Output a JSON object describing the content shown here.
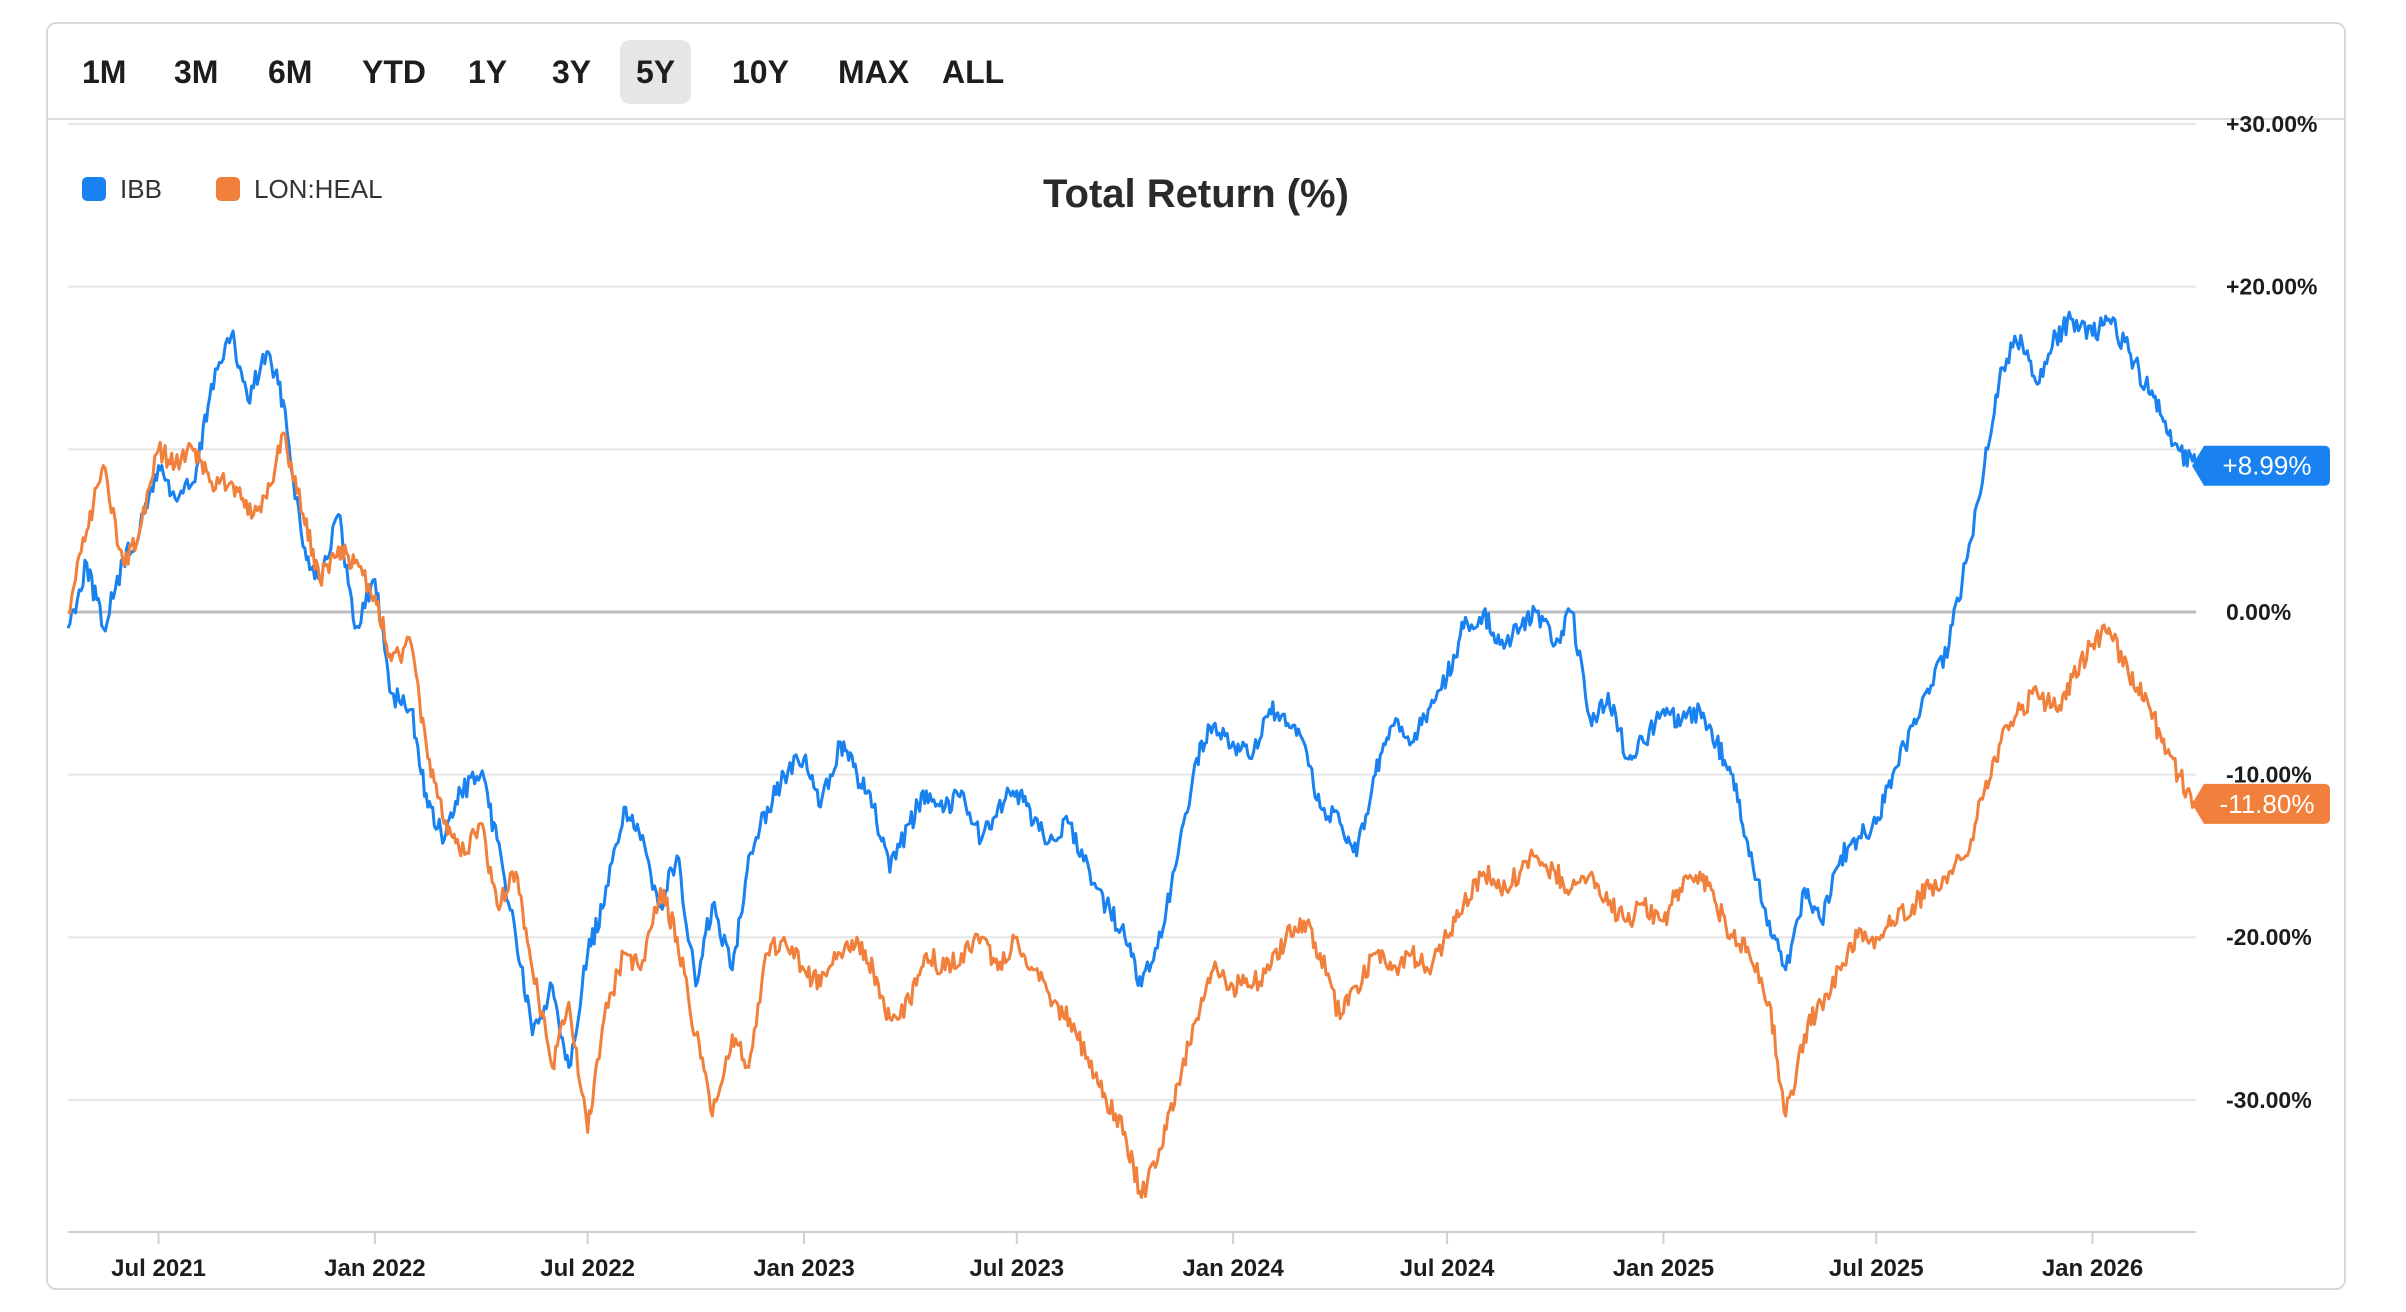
{
  "range_tabs": [
    {
      "label": "1M",
      "active": false
    },
    {
      "label": "3M",
      "active": false
    },
    {
      "label": "6M",
      "active": false
    },
    {
      "label": "YTD",
      "active": false
    },
    {
      "label": "1Y",
      "active": false
    },
    {
      "label": "3Y",
      "active": false
    },
    {
      "label": "5Y",
      "active": true
    },
    {
      "label": "10Y",
      "active": false
    },
    {
      "label": "MAX",
      "active": false
    },
    {
      "label": "ALL",
      "active": false
    }
  ],
  "chart_data": {
    "type": "line",
    "title": "Total Return (%)",
    "xlabel": "",
    "ylabel": "",
    "ylim": [
      -38,
      30
    ],
    "yticks": [
      30,
      20,
      10,
      0,
      -10,
      -20,
      -30
    ],
    "ytick_labels": [
      "+30.00%",
      "+20.00%",
      "",
      "0.00%",
      "-10.00%",
      "-20.00%",
      "-30.00%"
    ],
    "x_range": [
      "2021-04-15",
      "2026-03-30"
    ],
    "xticks": [
      {
        "date": "2021-07-01",
        "label": "Jul 2021"
      },
      {
        "date": "2022-01-01",
        "label": "Jan 2022"
      },
      {
        "date": "2022-07-01",
        "label": "Jul 2022"
      },
      {
        "date": "2023-01-01",
        "label": "Jan 2023"
      },
      {
        "date": "2023-07-01",
        "label": "Jul 2023"
      },
      {
        "date": "2024-01-01",
        "label": "Jan 2024"
      },
      {
        "date": "2024-07-01",
        "label": "Jul 2024"
      },
      {
        "date": "2025-01-01",
        "label": "Jan 2025"
      },
      {
        "date": "2025-07-01",
        "label": "Jul 2025"
      },
      {
        "date": "2026-01-01",
        "label": "Jan 2026"
      }
    ],
    "grid": true,
    "legend": "top-left",
    "series": [
      {
        "name": "IBB",
        "color": "#1a82f0",
        "last_label": "+8.99%",
        "points": [
          [
            "2021-04-15",
            -1
          ],
          [
            "2021-05-01",
            3
          ],
          [
            "2021-05-15",
            -1
          ],
          [
            "2021-06-01",
            3
          ],
          [
            "2021-06-15",
            5
          ],
          [
            "2021-07-01",
            9
          ],
          [
            "2021-07-15",
            7
          ],
          [
            "2021-08-01",
            8
          ],
          [
            "2021-08-15",
            14
          ],
          [
            "2021-09-01",
            17
          ],
          [
            "2021-09-15",
            13
          ],
          [
            "2021-10-01",
            16
          ],
          [
            "2021-10-15",
            13
          ],
          [
            "2021-11-01",
            4
          ],
          [
            "2021-11-15",
            2
          ],
          [
            "2021-12-01",
            6
          ],
          [
            "2021-12-15",
            -1
          ],
          [
            "2022-01-01",
            2
          ],
          [
            "2022-01-15",
            -5
          ],
          [
            "2022-02-01",
            -6
          ],
          [
            "2022-02-15",
            -12
          ],
          [
            "2022-03-01",
            -14
          ],
          [
            "2022-03-15",
            -11
          ],
          [
            "2022-04-01",
            -10
          ],
          [
            "2022-04-15",
            -14
          ],
          [
            "2022-05-01",
            -20
          ],
          [
            "2022-05-15",
            -26
          ],
          [
            "2022-06-01",
            -23
          ],
          [
            "2022-06-15",
            -28
          ],
          [
            "2022-07-01",
            -21
          ],
          [
            "2022-07-15",
            -18
          ],
          [
            "2022-08-01",
            -12
          ],
          [
            "2022-08-15",
            -14
          ],
          [
            "2022-09-01",
            -18
          ],
          [
            "2022-09-15",
            -15
          ],
          [
            "2022-10-01",
            -23
          ],
          [
            "2022-10-15",
            -18
          ],
          [
            "2022-11-01",
            -22
          ],
          [
            "2022-11-15",
            -15
          ],
          [
            "2022-12-01",
            -12
          ],
          [
            "2022-12-15",
            -10
          ],
          [
            "2023-01-01",
            -9
          ],
          [
            "2023-01-15",
            -12
          ],
          [
            "2023-02-01",
            -8
          ],
          [
            "2023-02-15",
            -10
          ],
          [
            "2023-03-01",
            -12
          ],
          [
            "2023-03-15",
            -16
          ],
          [
            "2023-04-01",
            -13
          ],
          [
            "2023-04-15",
            -11
          ],
          [
            "2023-05-01",
            -12
          ],
          [
            "2023-05-15",
            -11
          ],
          [
            "2023-06-01",
            -14
          ],
          [
            "2023-06-15",
            -12
          ],
          [
            "2023-07-01",
            -11
          ],
          [
            "2023-07-15",
            -13
          ],
          [
            "2023-08-01",
            -14
          ],
          [
            "2023-08-15",
            -13
          ],
          [
            "2023-09-01",
            -16
          ],
          [
            "2023-09-15",
            -18
          ],
          [
            "2023-10-01",
            -20
          ],
          [
            "2023-10-15",
            -23
          ],
          [
            "2023-11-01",
            -20
          ],
          [
            "2023-11-15",
            -15
          ],
          [
            "2023-12-01",
            -9
          ],
          [
            "2023-12-15",
            -7
          ],
          [
            "2024-01-01",
            -8
          ],
          [
            "2024-01-15",
            -9
          ],
          [
            "2024-02-01",
            -6
          ],
          [
            "2024-02-15",
            -7
          ],
          [
            "2024-03-01",
            -8
          ],
          [
            "2024-03-15",
            -12
          ],
          [
            "2024-04-01",
            -13
          ],
          [
            "2024-04-15",
            -15
          ],
          [
            "2024-05-01",
            -10
          ],
          [
            "2024-05-15",
            -7
          ],
          [
            "2024-06-01",
            -8
          ],
          [
            "2024-06-15",
            -6
          ],
          [
            "2024-07-01",
            -4
          ],
          [
            "2024-07-15",
            -1
          ],
          [
            "2024-08-01",
            0
          ],
          [
            "2024-08-15",
            -2
          ],
          [
            "2024-09-01",
            -1
          ],
          [
            "2024-09-15",
            0
          ],
          [
            "2024-10-01",
            -2
          ],
          [
            "2024-10-15",
            0
          ],
          [
            "2024-11-01",
            -7
          ],
          [
            "2024-11-15",
            -5
          ],
          [
            "2024-12-01",
            -9
          ],
          [
            "2024-12-15",
            -8
          ],
          [
            "2025-01-01",
            -6
          ],
          [
            "2025-01-15",
            -7
          ],
          [
            "2025-02-01",
            -6
          ],
          [
            "2025-02-15",
            -8
          ],
          [
            "2025-03-01",
            -10
          ],
          [
            "2025-03-15",
            -15
          ],
          [
            "2025-04-01",
            -19
          ],
          [
            "2025-04-15",
            -22
          ],
          [
            "2025-05-01",
            -17
          ],
          [
            "2025-05-15",
            -19
          ],
          [
            "2025-06-01",
            -15
          ],
          [
            "2025-06-15",
            -14
          ],
          [
            "2025-07-01",
            -13
          ],
          [
            "2025-07-15",
            -10
          ],
          [
            "2025-08-01",
            -7
          ],
          [
            "2025-08-15",
            -5
          ],
          [
            "2025-09-01",
            -2
          ],
          [
            "2025-09-15",
            3
          ],
          [
            "2025-10-01",
            9
          ],
          [
            "2025-10-15",
            15
          ],
          [
            "2025-11-01",
            17
          ],
          [
            "2025-11-15",
            14
          ],
          [
            "2025-12-01",
            17
          ],
          [
            "2025-12-15",
            18
          ],
          [
            "2026-01-01",
            17
          ],
          [
            "2026-01-15",
            18
          ],
          [
            "2026-02-01",
            16
          ],
          [
            "2026-02-15",
            14
          ],
          [
            "2026-03-01",
            12
          ],
          [
            "2026-03-15",
            10
          ],
          [
            "2026-03-30",
            8.99
          ]
        ]
      },
      {
        "name": "LON:HEAL",
        "color": "#f0803c",
        "last_label": "-11.80%",
        "points": [
          [
            "2021-04-15",
            0
          ],
          [
            "2021-05-01",
            5
          ],
          [
            "2021-05-15",
            9
          ],
          [
            "2021-06-01",
            3
          ],
          [
            "2021-06-15",
            5
          ],
          [
            "2021-07-01",
            10
          ],
          [
            "2021-07-15",
            9
          ],
          [
            "2021-08-01",
            10
          ],
          [
            "2021-08-15",
            8
          ],
          [
            "2021-09-01",
            8
          ],
          [
            "2021-09-15",
            6
          ],
          [
            "2021-10-01",
            7
          ],
          [
            "2021-10-15",
            11
          ],
          [
            "2021-11-01",
            6
          ],
          [
            "2021-11-15",
            2
          ],
          [
            "2021-12-01",
            4
          ],
          [
            "2021-12-15",
            3
          ],
          [
            "2022-01-01",
            1
          ],
          [
            "2022-01-15",
            -3
          ],
          [
            "2022-02-01",
            -2
          ],
          [
            "2022-02-15",
            -9
          ],
          [
            "2022-03-01",
            -13
          ],
          [
            "2022-03-15",
            -15
          ],
          [
            "2022-04-01",
            -13
          ],
          [
            "2022-04-15",
            -18
          ],
          [
            "2022-05-01",
            -16
          ],
          [
            "2022-05-15",
            -22
          ],
          [
            "2022-06-01",
            -28
          ],
          [
            "2022-06-15",
            -24
          ],
          [
            "2022-07-01",
            -32
          ],
          [
            "2022-07-15",
            -25
          ],
          [
            "2022-08-01",
            -21
          ],
          [
            "2022-08-15",
            -22
          ],
          [
            "2022-09-01",
            -17
          ],
          [
            "2022-09-15",
            -20
          ],
          [
            "2022-10-01",
            -26
          ],
          [
            "2022-10-15",
            -31
          ],
          [
            "2022-11-01",
            -26
          ],
          [
            "2022-11-15",
            -28
          ],
          [
            "2022-12-01",
            -21
          ],
          [
            "2022-12-15",
            -20
          ],
          [
            "2023-01-01",
            -22
          ],
          [
            "2023-01-15",
            -23
          ],
          [
            "2023-02-01",
            -21
          ],
          [
            "2023-02-15",
            -20
          ],
          [
            "2023-03-01",
            -22
          ],
          [
            "2023-03-15",
            -25
          ],
          [
            "2023-04-01",
            -24
          ],
          [
            "2023-04-15",
            -21
          ],
          [
            "2023-05-01",
            -22
          ],
          [
            "2023-05-15",
            -21
          ],
          [
            "2023-06-01",
            -20
          ],
          [
            "2023-06-15",
            -22
          ],
          [
            "2023-07-01",
            -20
          ],
          [
            "2023-07-15",
            -22
          ],
          [
            "2023-08-01",
            -24
          ],
          [
            "2023-08-15",
            -25
          ],
          [
            "2023-09-01",
            -28
          ],
          [
            "2023-09-15",
            -30
          ],
          [
            "2023-10-01",
            -32
          ],
          [
            "2023-10-15",
            -36
          ],
          [
            "2023-11-01",
            -33
          ],
          [
            "2023-11-15",
            -29
          ],
          [
            "2023-12-01",
            -25
          ],
          [
            "2023-12-15",
            -22
          ],
          [
            "2024-01-01",
            -23
          ],
          [
            "2024-01-15",
            -23
          ],
          [
            "2024-02-01",
            -22
          ],
          [
            "2024-02-15",
            -20
          ],
          [
            "2024-03-01",
            -19
          ],
          [
            "2024-03-15",
            -21
          ],
          [
            "2024-04-01",
            -25
          ],
          [
            "2024-04-15",
            -23
          ],
          [
            "2024-05-01",
            -21
          ],
          [
            "2024-05-15",
            -22
          ],
          [
            "2024-06-01",
            -21
          ],
          [
            "2024-06-15",
            -22
          ],
          [
            "2024-07-01",
            -20
          ],
          [
            "2024-07-15",
            -18
          ],
          [
            "2024-08-01",
            -16
          ],
          [
            "2024-08-15",
            -17
          ],
          [
            "2024-09-01",
            -16
          ],
          [
            "2024-09-15",
            -15
          ],
          [
            "2024-10-01",
            -16
          ],
          [
            "2024-10-15",
            -17
          ],
          [
            "2024-11-01",
            -16
          ],
          [
            "2024-11-15",
            -18
          ],
          [
            "2024-12-01",
            -19
          ],
          [
            "2024-12-15",
            -18
          ],
          [
            "2025-01-01",
            -19
          ],
          [
            "2025-01-15",
            -17
          ],
          [
            "2025-02-01",
            -16
          ],
          [
            "2025-02-15",
            -18
          ],
          [
            "2025-03-01",
            -20
          ],
          [
            "2025-03-15",
            -21
          ],
          [
            "2025-04-01",
            -24
          ],
          [
            "2025-04-15",
            -31
          ],
          [
            "2025-05-01",
            -26
          ],
          [
            "2025-05-15",
            -24
          ],
          [
            "2025-06-01",
            -22
          ],
          [
            "2025-06-15",
            -20
          ],
          [
            "2025-07-01",
            -20
          ],
          [
            "2025-07-15",
            -19
          ],
          [
            "2025-08-01",
            -18
          ],
          [
            "2025-08-15",
            -17
          ],
          [
            "2025-09-01",
            -16
          ],
          [
            "2025-09-15",
            -15
          ],
          [
            "2025-10-01",
            -11
          ],
          [
            "2025-10-15",
            -8
          ],
          [
            "2025-11-01",
            -6
          ],
          [
            "2025-11-15",
            -5
          ],
          [
            "2025-12-01",
            -6
          ],
          [
            "2025-12-15",
            -4
          ],
          [
            "2026-01-01",
            -2
          ],
          [
            "2026-01-15",
            -1
          ],
          [
            "2026-02-01",
            -4
          ],
          [
            "2026-02-15",
            -5
          ],
          [
            "2026-03-01",
            -8
          ],
          [
            "2026-03-15",
            -10
          ],
          [
            "2026-03-30",
            -11.8
          ]
        ]
      }
    ]
  }
}
